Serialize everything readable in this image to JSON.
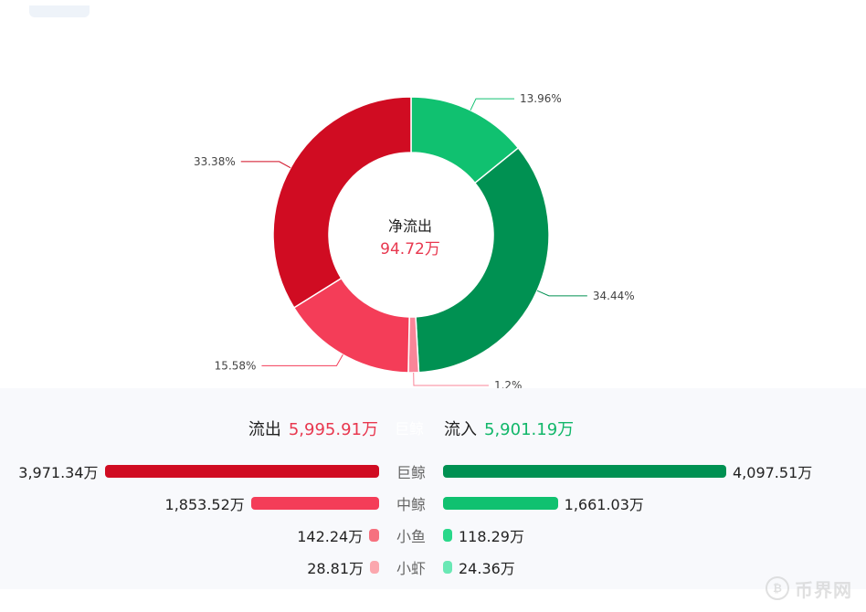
{
  "chart_data": {
    "type": "pie",
    "center": {
      "title": "净流出",
      "value": "94.72万"
    },
    "slices": [
      {
        "label": "13.96%",
        "value": 13.96,
        "color": "#10c170"
      },
      {
        "label": "34.44%",
        "value": 34.44,
        "color": "#009152"
      },
      {
        "label": "1.2%",
        "value": 1.2,
        "color": "#f98598"
      },
      {
        "label": "15.58%",
        "value": 15.58,
        "color": "#f43d58"
      },
      {
        "label": "33.38%",
        "value": 33.38,
        "color": "#d00c22"
      }
    ]
  },
  "summary": {
    "out_label": "流出",
    "out_value": "5,995.91万",
    "ghost_label": "巨鲸",
    "in_label": "流入",
    "in_value": "5,901.19万"
  },
  "rows": [
    {
      "category": "巨鲸",
      "out_value": 3971.34,
      "out_text": "3,971.34万",
      "in_value": 4097.51,
      "in_text": "4,097.51万",
      "out_color": "#d00c22",
      "in_color": "#009152"
    },
    {
      "category": "中鲸",
      "out_value": 1853.52,
      "out_text": "1,853.52万",
      "in_value": 1661.03,
      "in_text": "1,661.03万",
      "out_color": "#f43d58",
      "in_color": "#10c170"
    },
    {
      "category": "小鱼",
      "out_value": 142.24,
      "out_text": "142.24万",
      "in_value": 118.29,
      "in_text": "118.29万",
      "out_color": "#f6717f",
      "in_color": "#2ad88a"
    },
    {
      "category": "小虾",
      "out_value": 28.81,
      "out_text": "28.81万",
      "in_value": 24.36,
      "in_text": "24.36万",
      "out_color": "#fba7ae",
      "in_color": "#6ae8b5"
    }
  ],
  "watermark": {
    "text": "币界网",
    "icon": "bitcoin-coin-icon"
  }
}
